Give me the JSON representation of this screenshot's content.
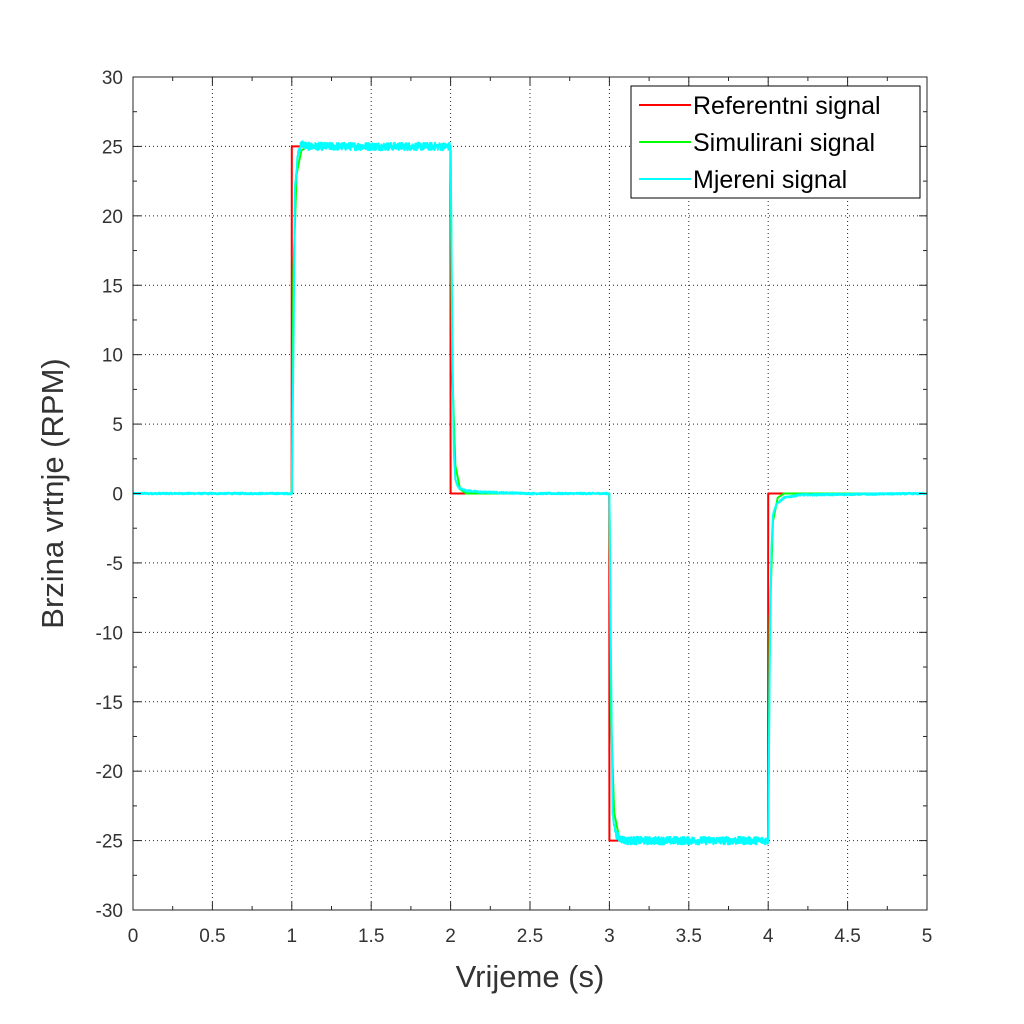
{
  "chart_data": {
    "type": "line",
    "title": "",
    "xlabel": "Vrijeme (s)",
    "ylabel": "Brzina vrtnje (RPM)",
    "xlim": [
      0,
      5
    ],
    "ylim": [
      -30,
      30
    ],
    "x_ticks": [
      "0",
      "0.5",
      "1",
      "1.5",
      "2",
      "2.5",
      "3",
      "3.5",
      "4",
      "4.5",
      "5"
    ],
    "y_ticks": [
      "30",
      "25",
      "20",
      "15",
      "10",
      "5",
      "0",
      "-5",
      "-10",
      "-15",
      "-20",
      "-25",
      "-30"
    ],
    "grid": true,
    "legend_position": "top-right",
    "series": [
      {
        "name": "Referentni signal",
        "color": "#ff0000",
        "x": [
          0,
          0.999,
          1.0,
          1.999,
          2.0,
          2.999,
          3.0,
          3.999,
          4.0,
          5
        ],
        "y": [
          0,
          0,
          25,
          25,
          0,
          0,
          -25,
          -25,
          0,
          0
        ]
      },
      {
        "name": "Simulirani signal",
        "color": "#00ff00",
        "x": [
          0,
          1.0,
          1.01,
          1.03,
          1.06,
          1.1,
          2.0,
          2.01,
          2.03,
          2.06,
          2.1,
          3.0,
          3.01,
          3.03,
          3.06,
          3.1,
          4.0,
          4.01,
          4.03,
          4.06,
          4.1,
          5
        ],
        "y": [
          0,
          0,
          16,
          23,
          24.7,
          25,
          25,
          9,
          2,
          0.3,
          0,
          0,
          -16,
          -23,
          -24.7,
          -25,
          -25,
          -9,
          -2,
          -0.3,
          0,
          0
        ]
      },
      {
        "name": "Mjereni signal",
        "color": "#00ffff",
        "x": [
          0,
          1.0,
          1.01,
          1.02,
          1.04,
          1.06,
          1.1,
          1.5,
          1.995,
          2.0,
          2.01,
          2.02,
          2.03,
          2.05,
          2.1,
          2.2,
          2.5,
          2.995,
          3.0,
          3.01,
          3.02,
          3.04,
          3.06,
          3.1,
          3.5,
          3.995,
          4.0,
          4.01,
          4.02,
          4.03,
          4.05,
          4.1,
          4.2,
          5
        ],
        "y": [
          0,
          0,
          10,
          22,
          24.6,
          25.2,
          25,
          25,
          25,
          25,
          12,
          3,
          1,
          0.4,
          0.2,
          0.1,
          0,
          0,
          0,
          -12,
          -23,
          -24.5,
          -24.8,
          -25,
          -25,
          -25,
          -25,
          -12,
          -4,
          -1.5,
          -0.8,
          -0.3,
          -0.1,
          0
        ],
        "noise": 0.28
      }
    ]
  }
}
